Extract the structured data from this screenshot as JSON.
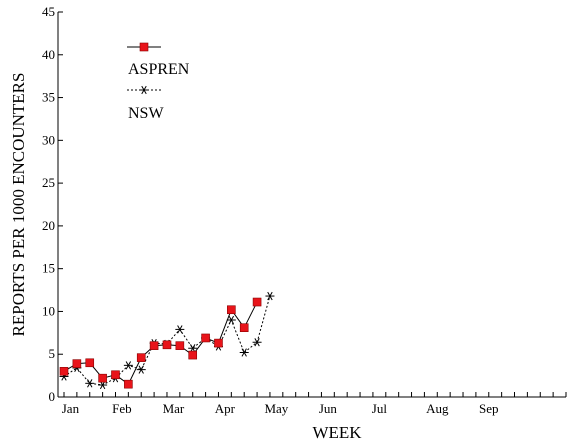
{
  "chart_data": {
    "type": "line",
    "xlabel": "WEEK",
    "ylabel": "REPORTS PER 1000 ENCOUNTERS",
    "ylim": [
      0,
      45
    ],
    "yticks": [
      0,
      5,
      10,
      15,
      20,
      25,
      30,
      35,
      40,
      45
    ],
    "xlim": [
      1,
      40
    ],
    "month_labels": [
      {
        "label": "Jan",
        "week": 1.5
      },
      {
        "label": "Feb",
        "week": 5.5
      },
      {
        "label": "Mar",
        "week": 9.5
      },
      {
        "label": "Apr",
        "week": 13.5
      },
      {
        "label": "May",
        "week": 17.5
      },
      {
        "label": "Jun",
        "week": 21.5
      },
      {
        "label": "Jul",
        "week": 25.5
      },
      {
        "label": "Aug",
        "week": 30
      },
      {
        "label": "Sep",
        "week": 34
      }
    ],
    "legend_position": "top-left",
    "series": [
      {
        "name": "ASPREN",
        "color": "#e8141a",
        "line_style": "solid",
        "marker": "square",
        "x": [
          1,
          2,
          3,
          4,
          5,
          6,
          7,
          8,
          9,
          10,
          11,
          12,
          13,
          14,
          15,
          16
        ],
        "y": [
          3.0,
          3.9,
          4.0,
          2.2,
          2.6,
          1.5,
          4.6,
          6.0,
          6.1,
          6.0,
          4.9,
          6.9,
          6.3,
          10.2,
          8.1,
          11.1
        ]
      },
      {
        "name": "NSW",
        "color": "#000000",
        "line_style": "dotted",
        "marker": "asterisk",
        "x": [
          1,
          2,
          3,
          4,
          5,
          6,
          7,
          8,
          9,
          10,
          11,
          12,
          13,
          14,
          15,
          16,
          17
        ],
        "y": [
          2.4,
          3.4,
          1.6,
          1.4,
          2.2,
          3.7,
          3.2,
          6.3,
          6.2,
          7.9,
          5.7,
          6.9,
          5.9,
          9.0,
          5.2,
          6.4,
          11.8
        ]
      }
    ]
  }
}
